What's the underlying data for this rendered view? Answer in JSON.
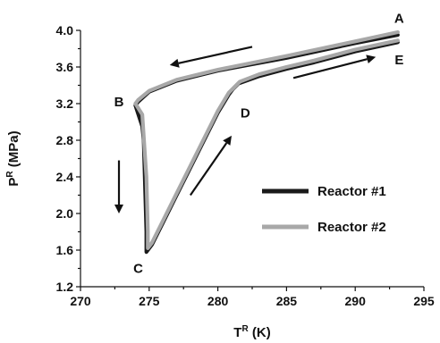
{
  "chart_data": {
    "type": "line",
    "title": "",
    "xlabel": "T",
    "xlabel_sup": "R",
    "xlabel_unit": " (K)",
    "ylabel": "P",
    "ylabel_sup": "R",
    "ylabel_unit": " (MPa)",
    "xlim": [
      270,
      295
    ],
    "ylim": [
      1.2,
      4.0
    ],
    "xticks": [
      270,
      275,
      280,
      285,
      290,
      295
    ],
    "yticks": [
      1.2,
      1.6,
      2.0,
      2.4,
      2.8,
      3.2,
      3.6,
      4.0
    ],
    "ytick_labels": [
      "1.2",
      "1.6",
      "2.0",
      "2.4",
      "2.8",
      "3.2",
      "3.6",
      "4.0"
    ],
    "grid": false,
    "legend_position": "right-middle",
    "series": [
      {
        "name": "Reactor #1",
        "color": "#1a1a1a",
        "x": [
          293.1,
          290,
          285,
          280,
          277,
          275,
          274.2,
          274,
          274.5,
          274.6,
          274.7,
          274.8,
          274.8,
          275.2,
          276,
          277,
          278,
          279,
          280,
          280.8,
          281.1,
          281.5,
          283,
          285,
          287,
          290,
          293.1
        ],
        "y": [
          3.95,
          3.86,
          3.7,
          3.56,
          3.45,
          3.33,
          3.22,
          3.18,
          2.95,
          2.8,
          2.3,
          1.8,
          1.58,
          1.66,
          1.9,
          2.2,
          2.5,
          2.8,
          3.1,
          3.3,
          3.36,
          3.42,
          3.5,
          3.58,
          3.65,
          3.77,
          3.87
        ]
      },
      {
        "name": "Reactor #2",
        "color": "#a8a8a8",
        "x": [
          293.1,
          290,
          285,
          280,
          277,
          275,
          274.2,
          274,
          274.5,
          274.8,
          274.9,
          274.9,
          275.2,
          276,
          277,
          278,
          279,
          280,
          280.8,
          281.2,
          281.6,
          283,
          285,
          287,
          290,
          293.1
        ],
        "y": [
          3.98,
          3.88,
          3.72,
          3.57,
          3.46,
          3.34,
          3.24,
          3.2,
          3.08,
          2.4,
          1.8,
          1.62,
          1.68,
          1.92,
          2.22,
          2.52,
          2.82,
          3.12,
          3.32,
          3.38,
          3.44,
          3.52,
          3.6,
          3.67,
          3.79,
          3.89
        ]
      }
    ],
    "point_labels": [
      {
        "text": "A",
        "x": 293.2,
        "y": 4.13
      },
      {
        "text": "B",
        "x": 272.8,
        "y": 3.22
      },
      {
        "text": "C",
        "x": 274.2,
        "y": 1.4
      },
      {
        "text": "D",
        "x": 282.0,
        "y": 3.1
      },
      {
        "text": "E",
        "x": 293.2,
        "y": 3.68
      }
    ],
    "arrows": [
      {
        "from": [
          282.5,
          3.82
        ],
        "to": [
          276.5,
          3.62
        ]
      },
      {
        "from": [
          285.5,
          3.48
        ],
        "to": [
          291.5,
          3.71
        ]
      },
      {
        "from": [
          272.8,
          2.58
        ],
        "to": [
          272.8,
          2.0
        ]
      },
      {
        "from": [
          278.0,
          2.2
        ],
        "to": [
          281.0,
          2.85
        ]
      }
    ]
  }
}
